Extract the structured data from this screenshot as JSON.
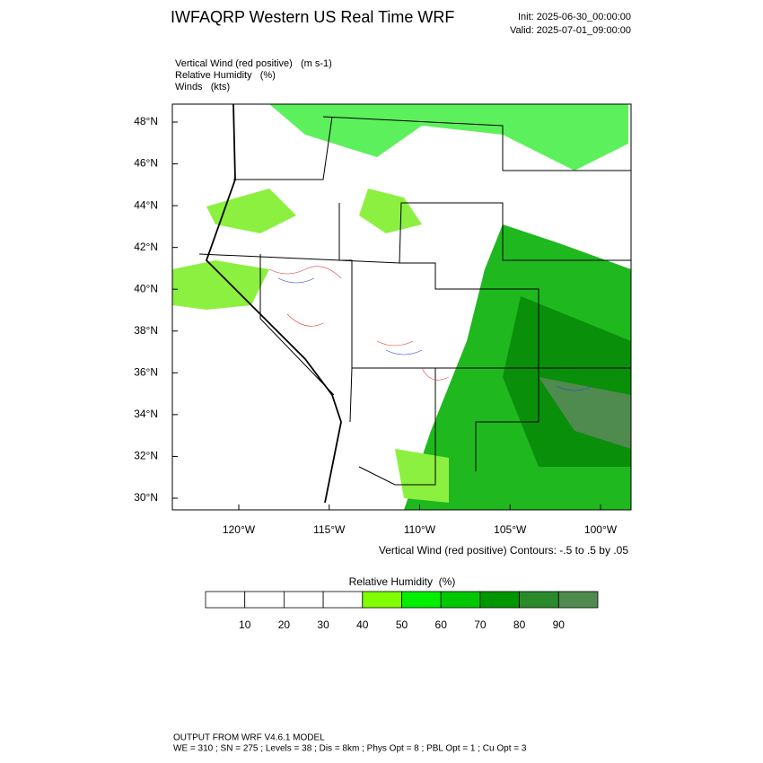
{
  "header": {
    "title": "IWFAQRP Western US Real Time WRF",
    "init": "Init: 2025-06-30_00:00:00",
    "valid": "Valid: 2025-07-01_09:00:00"
  },
  "fields": [
    "Vertical Wind (red positive)   (m s-1)",
    "Relative Humidity   (%)",
    "Winds   (kts)"
  ],
  "map": {
    "lat_labels": [
      "48°N",
      "46°N",
      "44°N",
      "42°N",
      "40°N",
      "38°N",
      "36°N",
      "34°N",
      "32°N",
      "30°N"
    ],
    "lon_labels": [
      "120°W",
      "115°W",
      "110°W",
      "105°W",
      "100°W"
    ],
    "contour_note": "Vertical Wind (red positive) Contours: -.5 to .5 by .05"
  },
  "colorbar": {
    "title": "Relative Humidity  (%)",
    "colors": [
      "#ffffff",
      "#ffffff",
      "#ffffff",
      "#ffffff",
      "#80ff00",
      "#00f000",
      "#00c800",
      "#009600",
      "#2a8a2a",
      "#4f8a4f"
    ],
    "labels": [
      "10",
      "20",
      "30",
      "40",
      "50",
      "60",
      "70",
      "80",
      "90"
    ]
  },
  "footer": [
    "OUTPUT FROM WRF V4.6.1 MODEL",
    "WE = 310 ; SN = 275 ; Levels = 38 ; Dis = 8km ; Phys Opt = 8 ; PBL Opt = 1 ; Cu Opt = 3"
  ]
}
